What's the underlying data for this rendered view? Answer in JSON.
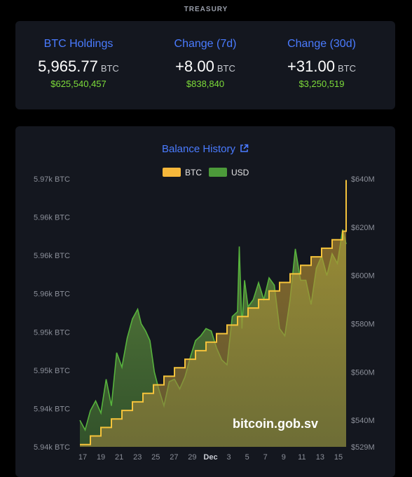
{
  "header": {
    "title": "TREASURY"
  },
  "stats": [
    {
      "label": "BTC Holdings",
      "value": "5,965.77",
      "unit": "BTC",
      "usd": "$625,540,457"
    },
    {
      "label": "Change (7d)",
      "value": "+8.00",
      "unit": "BTC",
      "usd": "$838,840"
    },
    {
      "label": "Change (30d)",
      "value": "+31.00",
      "unit": "BTC",
      "usd": "$3,250,519"
    }
  ],
  "chart_card": {
    "title": "Balance History",
    "watermark": "bitcoin.gob.sv"
  },
  "colors": {
    "btc": "#f5b73b",
    "usd": "#4c9a3a",
    "label_blue": "#4a7bff",
    "usd_green": "#7ddc3a",
    "card_bg": "#14171f"
  },
  "chart_data": {
    "type": "area",
    "title": "Balance History",
    "legend": {
      "placement": "top-center",
      "entries": [
        "BTC",
        "USD"
      ]
    },
    "x_ticks": [
      "17",
      "19",
      "21",
      "23",
      "25",
      "27",
      "29",
      "Dec",
      "3",
      "5",
      "7",
      "9",
      "11",
      "13",
      "15"
    ],
    "y_left": {
      "range": [
        5934.5,
        5965.9
      ],
      "ticks": [
        "5.97k BTC",
        "5.96k BTC",
        "5.96k BTC",
        "5.96k BTC",
        "5.95k BTC",
        "5.95k BTC",
        "5.94k BTC",
        "5.94k BTC"
      ]
    },
    "y_right": {
      "range": [
        529,
        640
      ],
      "ticks": [
        "$640M",
        "$620M",
        "$600M",
        "$580M",
        "$560M",
        "$540M",
        "$529M"
      ],
      "tick_values": [
        640,
        620,
        600,
        580,
        560,
        540,
        529
      ]
    },
    "series": [
      {
        "name": "BTC",
        "axis": "left",
        "step": true,
        "x": [
          0,
          1.2,
          2.4,
          3.6,
          4.8,
          6,
          7.2,
          8.4,
          9.6,
          10.8,
          12,
          13.2,
          14.4,
          15.6,
          16.8,
          18,
          19.2,
          20.4,
          21.6,
          22.8,
          24,
          25.2,
          26.4,
          27.6,
          28.8,
          30,
          30.4
        ],
        "values": [
          5934.77,
          5935.77,
          5936.77,
          5937.77,
          5938.77,
          5939.77,
          5940.77,
          5941.77,
          5942.77,
          5943.77,
          5944.77,
          5945.77,
          5946.77,
          5947.77,
          5948.77,
          5949.77,
          5950.77,
          5951.77,
          5952.77,
          5953.77,
          5954.77,
          5955.77,
          5956.77,
          5957.77,
          5958.77,
          5959.77,
          5965.77
        ]
      },
      {
        "name": "USD",
        "axis": "right",
        "x": [
          0,
          0.6,
          1.2,
          1.8,
          2.4,
          3.0,
          3.6,
          4.2,
          4.8,
          5.4,
          6.0,
          6.6,
          7.0,
          7.5,
          8.0,
          8.5,
          9.0,
          9.6,
          10.2,
          10.8,
          11.4,
          12.0,
          12.6,
          13.2,
          13.8,
          14.4,
          15.0,
          15.6,
          16.2,
          16.8,
          17.4,
          18.0,
          18.2,
          18.5,
          18.8,
          19.2,
          19.8,
          20.4,
          21.0,
          21.6,
          22.2,
          22.8,
          23.4,
          24.0,
          24.6,
          25.2,
          25.8,
          26.4,
          27.0,
          27.6,
          28.2,
          28.8,
          29.4,
          30.0,
          30.4
        ],
        "values": [
          540,
          536,
          544,
          548,
          543,
          557,
          546,
          568,
          562,
          574,
          582,
          586,
          580,
          577,
          573,
          560,
          553,
          546,
          556,
          557,
          553,
          558,
          566,
          573,
          575,
          578,
          577,
          570,
          565,
          563,
          583,
          585,
          612,
          578,
          598,
          587,
          590,
          597,
          590,
          599,
          596,
          578,
          575,
          590,
          611,
          598,
          598,
          588,
          603,
          608,
          600,
          609,
          605,
          619,
          613
        ]
      }
    ]
  }
}
